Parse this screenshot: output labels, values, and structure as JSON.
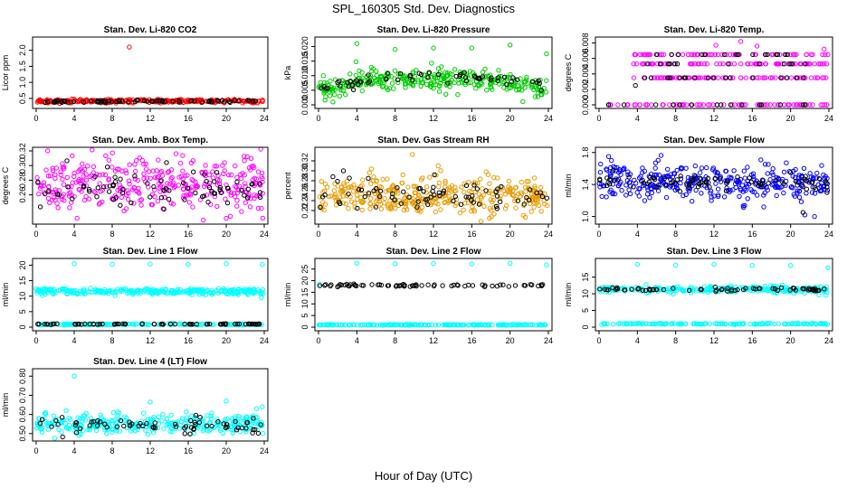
{
  "page": {
    "title": "SPL_160305  Std. Dev. Diagnostics",
    "xlabel": "Hour of Day (UTC)"
  },
  "chart_data": [
    {
      "type": "scatter",
      "title": "Stan. Dev. Li-820 CO2",
      "ylabel": "Licor ppm",
      "xlim": [
        0,
        24
      ],
      "ylim": [
        0.3,
        2.3
      ],
      "xticks": [
        0,
        4,
        8,
        12,
        16,
        20,
        24
      ],
      "yticks": [
        0.5,
        1.0,
        1.5,
        2.0
      ],
      "ytick_labels": [
        "0.5",
        "1.0",
        "1.5",
        "2.0"
      ],
      "series": [
        {
          "color": "#ff0000",
          "baseline": 0.42,
          "spread": 0.03,
          "count": 260,
          "outliers": [
            [
              9.8,
              2.1
            ]
          ]
        },
        {
          "color": "#000000",
          "baseline": 0.41,
          "spread": 0.02,
          "count": 70,
          "outliers": []
        }
      ]
    },
    {
      "type": "scatter",
      "title": "Stan. Dev. Li-820 Pressure",
      "ylabel": "kPa",
      "xlim": [
        0,
        24
      ],
      "ylim": [
        0,
        0.022
      ],
      "xticks": [
        0,
        4,
        8,
        12,
        16,
        20,
        24
      ],
      "yticks": [
        0.0,
        0.005,
        0.01,
        0.015,
        0.02
      ],
      "ytick_labels": [
        "0.000",
        "0.005",
        "0.010",
        "0.015",
        "0.020"
      ],
      "series": [
        {
          "color": "#00cc00",
          "curve": [
            [
              0,
              0.006
            ],
            [
              2,
              0.0055
            ],
            [
              3.5,
              0.008
            ],
            [
              6,
              0.0085
            ],
            [
              10,
              0.0085
            ],
            [
              14,
              0.0088
            ],
            [
              18,
              0.0085
            ],
            [
              20,
              0.008
            ],
            [
              22,
              0.006
            ],
            [
              24,
              0.0055
            ]
          ],
          "spread": 0.0018,
          "count": 330,
          "outliers": [
            [
              4,
              0.021
            ],
            [
              8,
              0.019
            ],
            [
              12,
              0.0195
            ],
            [
              16,
              0.0195
            ],
            [
              20,
              0.0205
            ],
            [
              23.8,
              0.0175
            ],
            [
              1.5,
              0.001
            ],
            [
              0.5,
              0.01
            ]
          ]
        },
        {
          "color": "#000000",
          "curve": [
            [
              0,
              0.006
            ],
            [
              3,
              0.0065
            ],
            [
              6,
              0.009
            ],
            [
              10,
              0.0095
            ],
            [
              14,
              0.0095
            ],
            [
              18,
              0.009
            ],
            [
              22,
              0.0075
            ],
            [
              24,
              0.006
            ]
          ],
          "spread": 0.0008,
          "count": 60,
          "outliers": []
        }
      ]
    },
    {
      "type": "scatter",
      "title": "Stan. Dev. Li-820 Temp.",
      "ylabel": "degrees C",
      "xlim": [
        0,
        24
      ],
      "ylim": [
        0,
        0.0083
      ],
      "xticks": [
        0,
        4,
        8,
        12,
        16,
        20,
        24
      ],
      "yticks": [
        0.0,
        0.002,
        0.004,
        0.006,
        0.008
      ],
      "ytick_labels": [
        "0.000",
        "0.002",
        "0.004",
        "0.006",
        "0.008"
      ],
      "series": [
        {
          "color": "#ff00ff",
          "levels": [
            0,
            0.0035,
            0.0053,
            0.0065
          ],
          "levels_x": [
            [
              0,
              24
            ],
            [
              3.5,
              24
            ],
            [
              3.5,
              24
            ],
            [
              3.5,
              24
            ]
          ],
          "count": 300,
          "outliers": [
            [
              14.8,
              0.0082
            ],
            [
              23.5,
              0.0072
            ],
            [
              12.2,
              0.0077
            ],
            [
              16.5,
              0.0076
            ]
          ]
        },
        {
          "color": "#000000",
          "levels": [
            0,
            0.0035,
            0.0053,
            0.0065
          ],
          "levels_x": [
            [
              0,
              24
            ],
            [
              4,
              22
            ],
            [
              4,
              22
            ],
            [
              6,
              20
            ]
          ],
          "count": 60,
          "outliers": [
            [
              3.8,
              0.0025
            ]
          ]
        }
      ]
    },
    {
      "type": "scatter",
      "title": "Stan. Dev. Amb. Box Temp.",
      "ylabel": "degrees C",
      "xlim": [
        0,
        24
      ],
      "ylim": [
        0.225,
        0.32
      ],
      "xticks": [
        0,
        4,
        8,
        12,
        16,
        20,
        24
      ],
      "yticks": [
        0.26,
        0.28,
        0.3,
        0.32
      ],
      "ytick_labels": [
        "0.26",
        "0.28",
        "0.30",
        "0.32"
      ],
      "series": [
        {
          "color": "#ff00ff",
          "baseline": 0.276,
          "spread": 0.018,
          "count": 340,
          "outliers": [
            [
              4.3,
              0.228
            ],
            [
              20,
              0.228
            ]
          ]
        },
        {
          "color": "#000000",
          "baseline": 0.27,
          "spread": 0.013,
          "count": 75,
          "outliers": []
        }
      ]
    },
    {
      "type": "scatter",
      "title": "Stan. Dev. Gas Stream RH",
      "ylabel": "percent",
      "xlim": [
        0,
        24
      ],
      "ylim": [
        0.2,
        0.34
      ],
      "xticks": [
        0,
        4,
        8,
        12,
        16,
        20,
        24
      ],
      "yticks": [
        0.22,
        0.24,
        0.26,
        0.28,
        0.3,
        0.32
      ],
      "ytick_labels": [
        "0.22",
        "0.24",
        "0.26",
        "0.28",
        "0.30",
        "0.32"
      ],
      "series": [
        {
          "color": "#e89b00",
          "baseline": 0.25,
          "spread": 0.018,
          "count": 360,
          "outliers": [
            [
              9.8,
              0.333
            ],
            [
              12.5,
              0.31
            ],
            [
              17.5,
              0.298
            ]
          ]
        },
        {
          "color": "#000000",
          "baseline": 0.247,
          "spread": 0.013,
          "count": 70,
          "outliers": [
            [
              1.5,
              0.288
            ],
            [
              5.2,
              0.285
            ],
            [
              2.6,
              0.3
            ],
            [
              12.1,
              0.292
            ]
          ]
        }
      ]
    },
    {
      "type": "scatter",
      "title": "Stan. Dev. Sample Flow",
      "ylabel": "ml/min",
      "xlim": [
        0,
        24
      ],
      "ylim": [
        0.95,
        1.82
      ],
      "xticks": [
        0,
        4,
        8,
        12,
        16,
        20,
        24
      ],
      "yticks": [
        1.0,
        1.4,
        1.8
      ],
      "ytick_labels": [
        "1.0",
        "1.4",
        "1.8"
      ],
      "series": [
        {
          "color": "#0000ff",
          "baseline": 1.42,
          "spread": 0.11,
          "count": 340,
          "outliers": [
            [
              1,
              1.75
            ],
            [
              1.3,
              1.7
            ],
            [
              17.2,
              1.12
            ],
            [
              21.5,
              1.02
            ],
            [
              22.5,
              1.0
            ],
            [
              0.3,
              1.25
            ]
          ]
        },
        {
          "color": "#000000",
          "baseline": 1.43,
          "spread": 0.05,
          "count": 80,
          "outliers": [
            [
              1.5,
              1.58
            ],
            [
              23.8,
              1.3
            ],
            [
              21.3,
              1.05
            ]
          ]
        }
      ]
    },
    {
      "type": "scatter",
      "title": "Stan. Dev. Line 1 Flow",
      "ylabel": "ml/min",
      "xlim": [
        0,
        24
      ],
      "ylim": [
        0,
        21
      ],
      "xticks": [
        0,
        4,
        8,
        12,
        16,
        20,
        24
      ],
      "yticks": [
        0,
        5,
        10,
        15,
        20
      ],
      "ytick_labels": [
        "0",
        "5",
        "10",
        "15",
        "20"
      ],
      "series": [
        {
          "color": "#00ffff",
          "baseline": 11.5,
          "spread": 0.5,
          "count": 300,
          "outliers": [
            [
              4,
              20.5
            ],
            [
              8,
              20.3
            ],
            [
              12,
              20.4
            ],
            [
              16,
              20.2
            ],
            [
              20,
              20.5
            ],
            [
              23.8,
              20.2
            ],
            [
              23.7,
              9.5
            ]
          ]
        },
        {
          "color": "#00ffff",
          "baseline": 0.9,
          "spread": 0.1,
          "count": 150,
          "outliers": []
        },
        {
          "color": "#000000",
          "baseline": 1.0,
          "spread": 0.05,
          "count": 70,
          "outliers": []
        }
      ]
    },
    {
      "type": "scatter",
      "title": "Stan. Dev. Line 2 Flow",
      "ylabel": "ml/min",
      "xlim": [
        0,
        24
      ],
      "ylim": [
        0,
        28
      ],
      "xticks": [
        0,
        4,
        8,
        12,
        16,
        20,
        24
      ],
      "yticks": [
        0,
        5,
        10,
        15,
        20,
        25
      ],
      "ytick_labels": [
        "0",
        "5",
        "10",
        "15",
        "20",
        "25"
      ],
      "series": [
        {
          "color": "#00ffff",
          "baseline": 1.0,
          "spread": 0.08,
          "count": 200,
          "outliers": [
            [
              4,
              27.5
            ],
            [
              8,
              27.3
            ],
            [
              12,
              27.4
            ],
            [
              16,
              27.2
            ],
            [
              20,
              27.5
            ],
            [
              23.8,
              26.8
            ],
            [
              0.1,
              18.5
            ]
          ]
        },
        {
          "color": "#000000",
          "baseline": 18.0,
          "spread": 0.3,
          "count": 70,
          "outliers": []
        }
      ]
    },
    {
      "type": "scatter",
      "title": "Stan. Dev. Line 3 Flow",
      "ylabel": "ml/min",
      "xlim": [
        0,
        24
      ],
      "ylim": [
        0,
        19.5
      ],
      "xticks": [
        0,
        4,
        8,
        12,
        16,
        20,
        24
      ],
      "yticks": [
        0,
        5,
        10,
        15
      ],
      "ytick_labels": [
        "0",
        "5",
        "10",
        "15"
      ],
      "series": [
        {
          "color": "#00ffff",
          "baseline": 11.3,
          "spread": 0.5,
          "count": 260,
          "outliers": [
            [
              4,
              18.8
            ],
            [
              8,
              18.6
            ],
            [
              12,
              18.8
            ],
            [
              16,
              18.5
            ],
            [
              20,
              18.5
            ],
            [
              23.9,
              17.8
            ],
            [
              23.7,
              9.5
            ]
          ]
        },
        {
          "color": "#00ffff",
          "baseline": 1.0,
          "spread": 0.08,
          "count": 150,
          "outliers": []
        },
        {
          "color": "#000000",
          "baseline": 11.3,
          "spread": 0.25,
          "count": 70,
          "outliers": []
        }
      ]
    },
    {
      "type": "scatter",
      "title": "Stan. Dev. Line 4 (LT) Flow",
      "ylabel": "ml/min",
      "xlim": [
        0,
        24
      ],
      "ylim": [
        0.48,
        0.82
      ],
      "xticks": [
        0,
        4,
        8,
        12,
        16,
        20,
        24
      ],
      "yticks": [
        0.5,
        0.6,
        0.7,
        0.8
      ],
      "ytick_labels": [
        "0.50",
        "0.60",
        "0.70",
        "0.80"
      ],
      "series": [
        {
          "color": "#00ffff",
          "baseline": 0.55,
          "spread": 0.025,
          "count": 320,
          "outliers": [
            [
              4,
              0.8
            ],
            [
              12,
              0.665
            ],
            [
              20,
              0.67
            ],
            [
              23.8,
              0.64
            ],
            [
              23.2,
              0.63
            ],
            [
              4.5,
              0.49
            ]
          ]
        },
        {
          "color": "#000000",
          "baseline": 0.545,
          "spread": 0.02,
          "count": 70,
          "outliers": []
        }
      ]
    }
  ]
}
